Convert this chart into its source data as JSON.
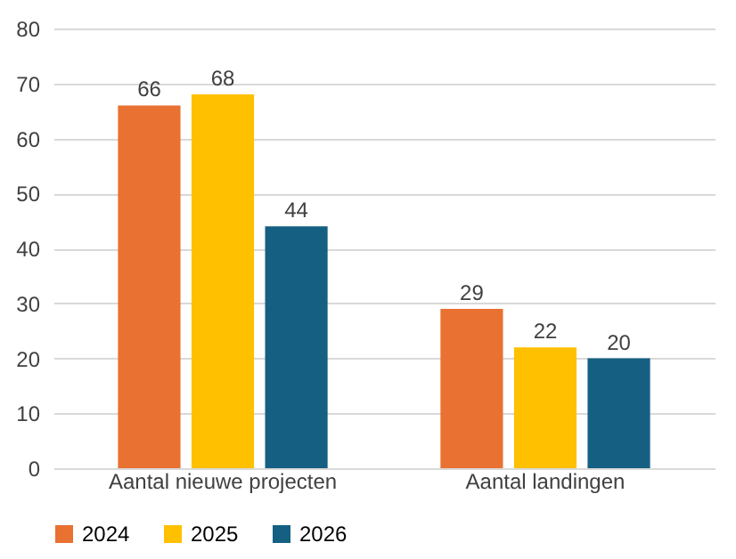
{
  "chart_data": {
    "type": "bar",
    "categories": [
      "Aantal nieuwe projecten",
      "Aantal landingen"
    ],
    "series": [
      {
        "name": "2024",
        "color": "#e97132",
        "values": [
          66,
          29
        ]
      },
      {
        "name": "2025",
        "color": "#ffc000",
        "values": [
          68,
          22
        ]
      },
      {
        "name": "2026",
        "color": "#156082",
        "values": [
          44,
          20
        ]
      }
    ],
    "ylim": [
      0,
      80
    ],
    "yticks": [
      0,
      10,
      20,
      30,
      40,
      50,
      60,
      70,
      80
    ],
    "grid": "y",
    "legend": "bottom",
    "data_labels": true
  }
}
